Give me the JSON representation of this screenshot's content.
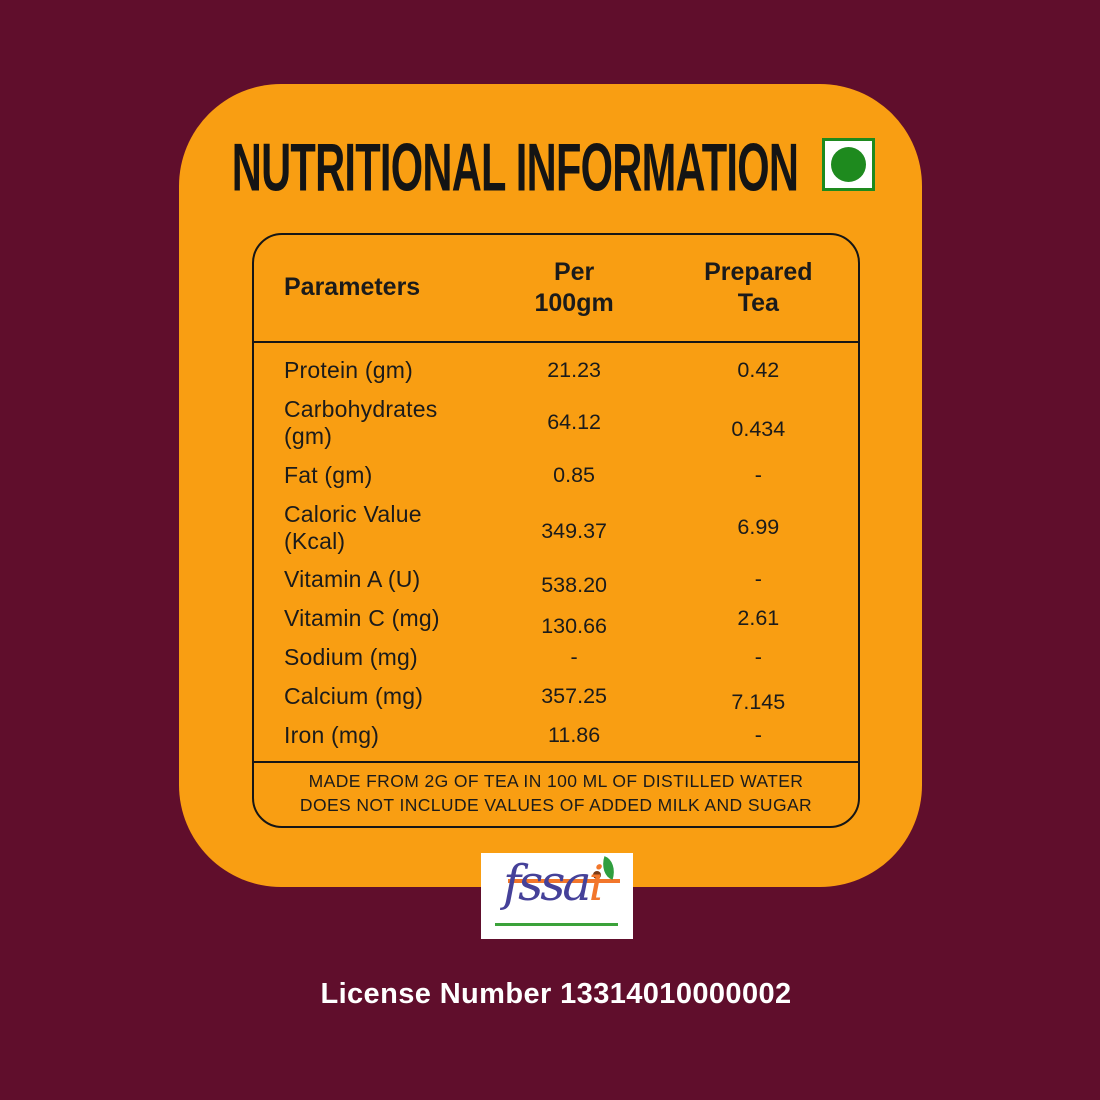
{
  "title": "NUTRITIONAL INFORMATION",
  "veg_mark": {
    "icon": "veg-mark-icon",
    "color": "#1E8A1E"
  },
  "table": {
    "headers": [
      "Parameters",
      "Per 100gm",
      "Prepared Tea"
    ],
    "rows": [
      {
        "parameter": "Protein (gm)",
        "per_100gm": "21.23",
        "prepared_tea": "0.42"
      },
      {
        "parameter": "Carbohydrates (gm)",
        "per_100gm": "64.12",
        "prepared_tea": "0.434"
      },
      {
        "parameter": "Fat (gm)",
        "per_100gm": "0.85",
        "prepared_tea": "-"
      },
      {
        "parameter": "Caloric Value (Kcal)",
        "per_100gm": "349.37",
        "prepared_tea": "6.99"
      },
      {
        "parameter": "Vitamin A (U)",
        "per_100gm": "538.20",
        "prepared_tea": "-"
      },
      {
        "parameter": "Vitamin C (mg)",
        "per_100gm": "130.66",
        "prepared_tea": "2.61"
      },
      {
        "parameter": "Sodium (mg)",
        "per_100gm": "-",
        "prepared_tea": "-"
      },
      {
        "parameter": "Calcium (mg)",
        "per_100gm": "357.25",
        "prepared_tea": "7.145"
      },
      {
        "parameter": "Iron (mg)",
        "per_100gm": "11.86",
        "prepared_tea": "-"
      }
    ],
    "footnote": [
      "MADE FROM 2G OF TEA IN 100 ML OF DISTILLED WATER",
      "DOES NOT INCLUDE VALUES OF ADDED MILK AND SUGAR"
    ]
  },
  "fssai_logo": {
    "text_main": "fssa",
    "text_i": "i",
    "leaf_icon": "leaf-icon"
  },
  "license": {
    "label": "License Number 13314010000002"
  },
  "colors": {
    "background_maroon": "#600E2C",
    "card_orange": "#F99E12",
    "text_black": "#141414",
    "white": "#FFFFFF",
    "veg_green": "#1E8A1E",
    "fssai_blue": "#454199",
    "fssai_orange": "#F2762B",
    "fssai_green": "#3BA23A",
    "fssai_seed_brown": "#7A3B17"
  }
}
